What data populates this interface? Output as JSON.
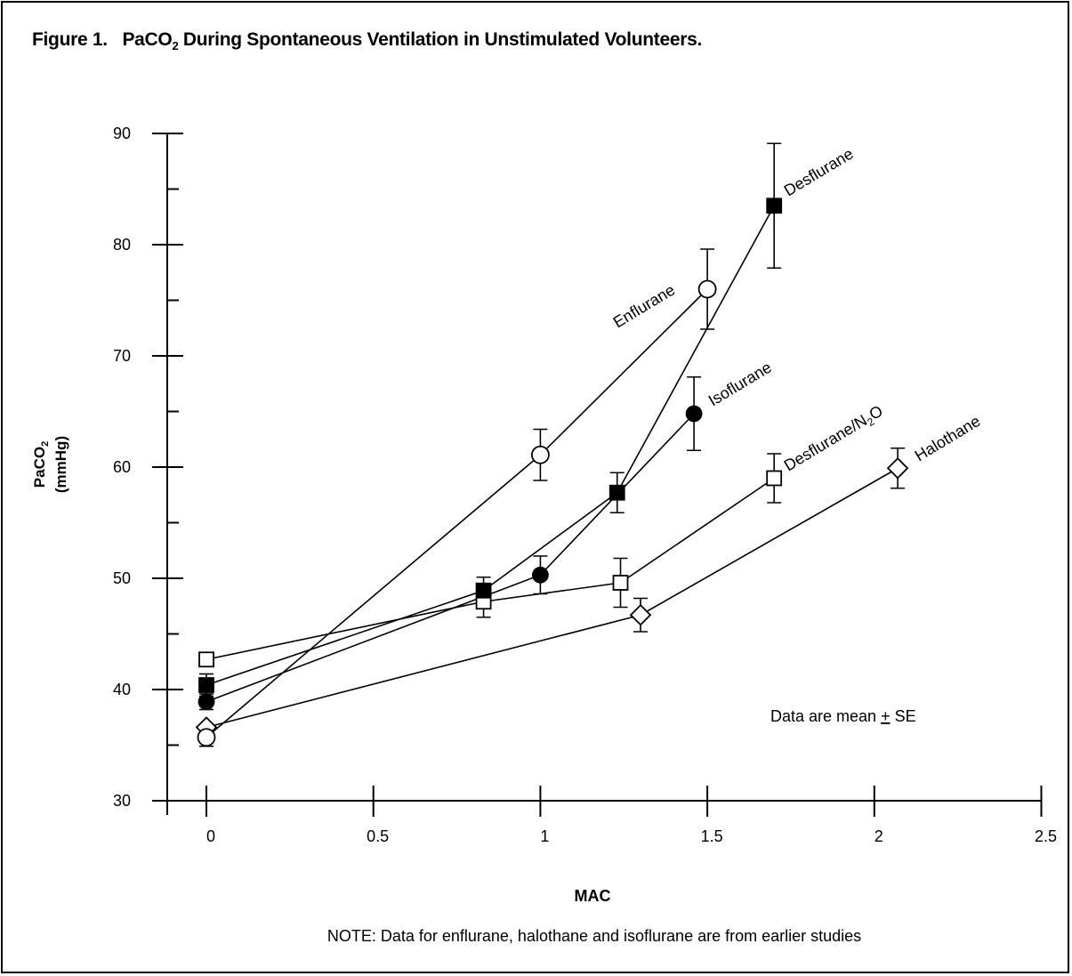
{
  "figure": {
    "label": "Figure 1.",
    "title_pre": "PaCO",
    "title_sub": "2",
    "title_post": " During Spontaneous Ventilation in Unstimulated Volunteers."
  },
  "chart_data": {
    "type": "line",
    "xlabel": "MAC",
    "ylabel_line1_pre": "PaCO",
    "ylabel_line1_sub": "2",
    "ylabel_line2": "(mmHg)",
    "xlim": [
      -0.12,
      2.5
    ],
    "ylim": [
      30,
      90
    ],
    "x_ticks": [
      0,
      0.5,
      1,
      1.5,
      2,
      2.5
    ],
    "x_tick_labels": [
      "0",
      "0.5",
      "1",
      "1.5",
      "2",
      "2.5"
    ],
    "y_ticks": [
      30,
      40,
      50,
      60,
      70,
      80,
      90
    ],
    "y_tick_labels": [
      "30",
      "40",
      "50",
      "60",
      "70",
      "80",
      "90"
    ],
    "y_minor_ticks": [
      35,
      45,
      55,
      65,
      75,
      85
    ],
    "annotation": "Data are mean ± SE",
    "annotation_pre": "Data are mean ",
    "annotation_pm": "+",
    "annotation_post": " SE",
    "note": "NOTE: Data for enflurane, halothane and isoflurane are from earlier studies",
    "series": [
      {
        "name": "Halothane",
        "marker": "diamond-open",
        "points": [
          {
            "x": 0,
            "y": 36.6,
            "err": 0
          },
          {
            "x": 1.3,
            "y": 46.7,
            "err": 1.5
          },
          {
            "x": 2.07,
            "y": 59.9,
            "err": 1.8
          }
        ]
      },
      {
        "name": "Desflurane/N₂O",
        "name_pre": "Desflurane/N",
        "name_sub": "2",
        "name_post": "O",
        "marker": "square-open",
        "points": [
          {
            "x": 0,
            "y": 42.7,
            "err": 0
          },
          {
            "x": 0.83,
            "y": 47.9,
            "err": 1.4
          },
          {
            "x": 1.24,
            "y": 49.6,
            "err": 2.2
          },
          {
            "x": 1.7,
            "y": 59.0,
            "err": 2.2
          }
        ]
      },
      {
        "name": "Isoflurane",
        "marker": "circle-filled",
        "points": [
          {
            "x": 0,
            "y": 38.9,
            "err": 0.7
          },
          {
            "x": 1.0,
            "y": 50.3,
            "err": 1.7
          },
          {
            "x": 1.46,
            "y": 64.8,
            "err": 3.3
          }
        ]
      },
      {
        "name": "Desflurane",
        "marker": "square-filled",
        "points": [
          {
            "x": 0,
            "y": 40.4,
            "err": 1.0
          },
          {
            "x": 0.83,
            "y": 48.9,
            "err": 1.2
          },
          {
            "x": 1.23,
            "y": 57.7,
            "err": 1.8
          },
          {
            "x": 1.7,
            "y": 83.5,
            "err": 5.6
          }
        ]
      },
      {
        "name": "Enflurane",
        "marker": "circle-open",
        "points": [
          {
            "x": 0,
            "y": 35.7,
            "err": 0.8
          },
          {
            "x": 1.0,
            "y": 61.1,
            "err": 2.3
          },
          {
            "x": 1.5,
            "y": 76.0,
            "err": 3.6
          }
        ]
      }
    ]
  }
}
